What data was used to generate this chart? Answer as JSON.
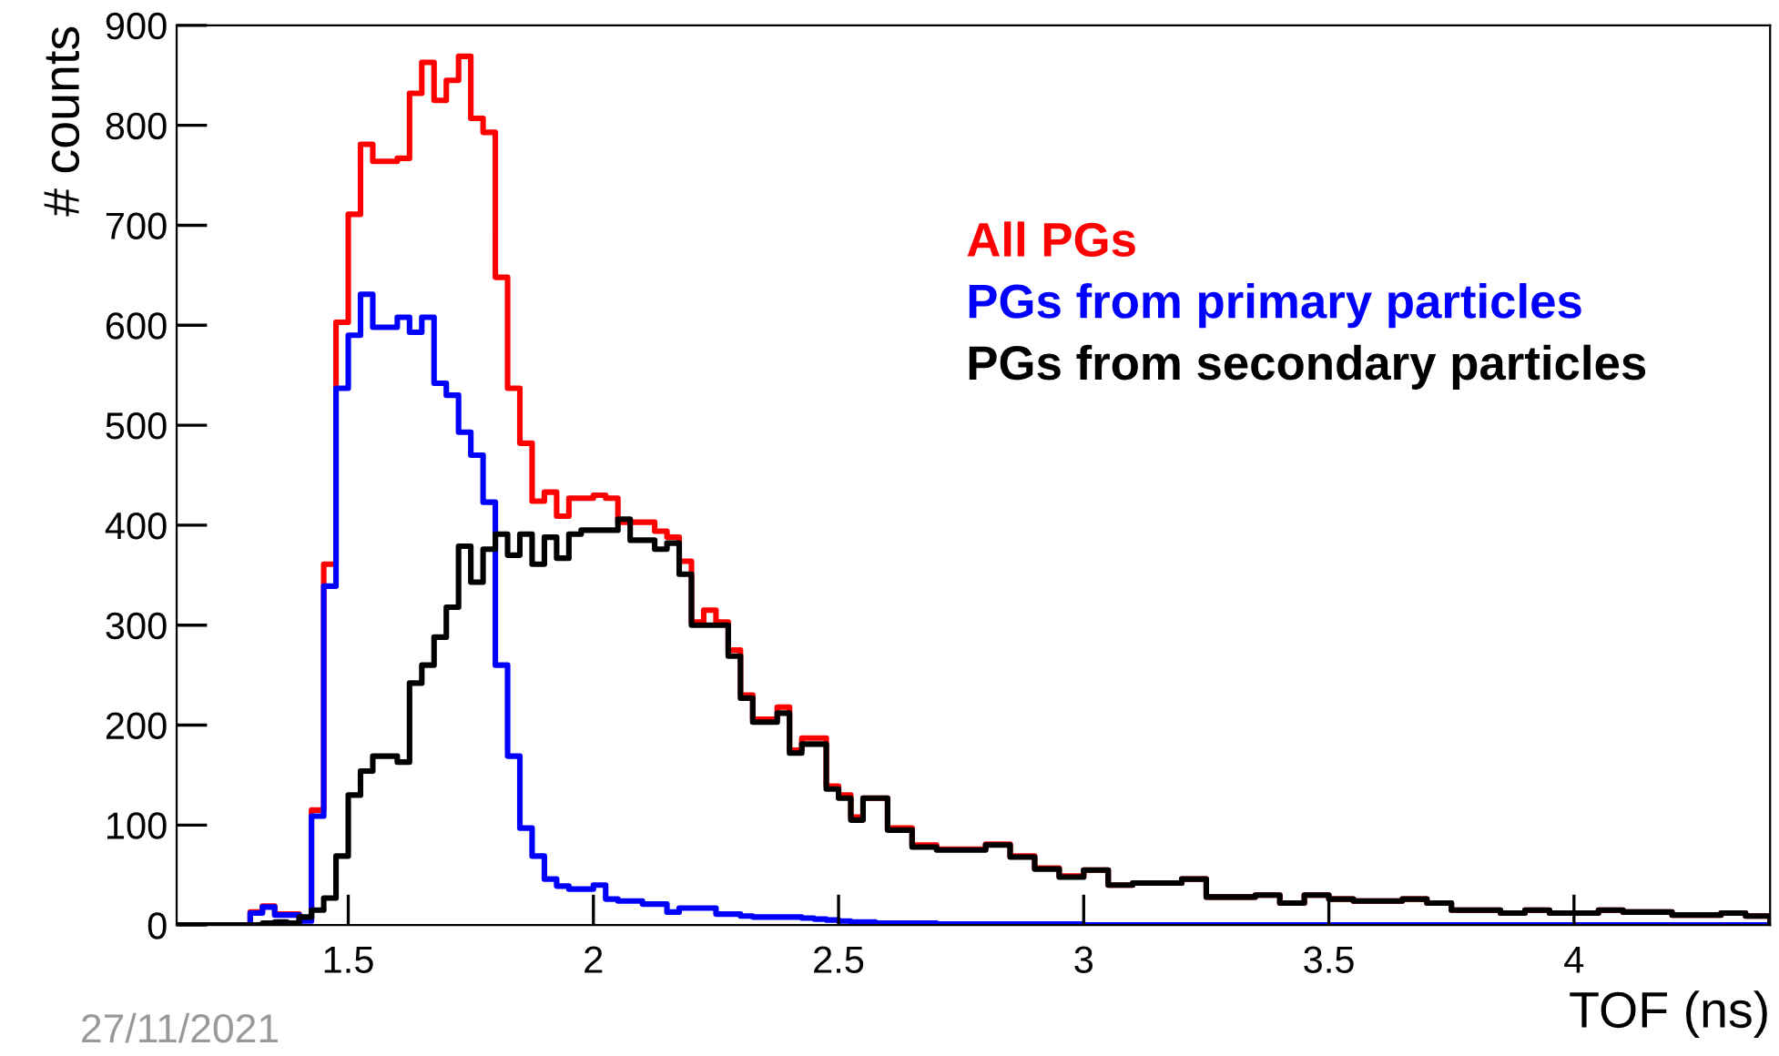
{
  "chart_data": {
    "type": "histogram",
    "xlabel": "TOF (ns)",
    "ylabel": "# counts",
    "annotations": [
      "27/11/2021"
    ],
    "bins": [
      1.15,
      1.175,
      1.2,
      1.225,
      1.25,
      1.275,
      1.3,
      1.325,
      1.35,
      1.375,
      1.4,
      1.425,
      1.45,
      1.475,
      1.5,
      1.525,
      1.55,
      1.575,
      1.6,
      1.625,
      1.65,
      1.675,
      1.7,
      1.725,
      1.75,
      1.775,
      1.8,
      1.825,
      1.85,
      1.875,
      1.9,
      1.925,
      1.95,
      1.975,
      2.0,
      2.025,
      2.05,
      2.075,
      2.1,
      2.125,
      2.15,
      2.175,
      2.2,
      2.225,
      2.25,
      2.275,
      2.3,
      2.325,
      2.35,
      2.375,
      2.4,
      2.425,
      2.45,
      2.475,
      2.5,
      2.525,
      2.55,
      2.575,
      2.6,
      2.65,
      2.7,
      2.75,
      2.8,
      2.85,
      2.9,
      2.95,
      3.0,
      3.05,
      3.1,
      3.15,
      3.2,
      3.25,
      3.3,
      3.35,
      3.4,
      3.45,
      3.5,
      3.55,
      3.6,
      3.65,
      3.7,
      3.75,
      3.8,
      3.85,
      3.9,
      3.95,
      4.0,
      4.05,
      4.1,
      4.15,
      4.2,
      4.25,
      4.3,
      4.35,
      4.4
    ],
    "series": [
      {
        "name": "All PGs",
        "color": "#ff0000",
        "values": [
          0,
          0,
          0,
          0,
          0,
          0,
          13,
          19,
          11,
          11,
          5,
          115,
          361,
          603,
          711,
          781,
          764,
          764,
          767,
          832,
          863,
          825,
          845,
          869,
          807,
          793,
          648,
          537,
          482,
          424,
          433,
          409,
          427,
          427,
          430,
          427,
          403,
          403,
          403,
          394,
          388,
          364,
          303,
          315,
          303,
          275,
          230,
          206,
          206,
          218,
          175,
          187,
          187,
          139,
          130,
          108,
          127,
          127,
          97,
          80,
          76,
          76,
          81,
          69,
          57,
          49,
          55,
          40,
          42,
          42,
          46,
          28,
          28,
          30,
          22,
          30,
          26,
          24,
          24,
          26,
          22,
          15,
          15,
          12,
          15,
          12,
          12,
          15,
          13,
          13,
          10,
          10,
          12,
          9
        ]
      },
      {
        "name": "PGs from primary particles",
        "color": "#0000ff",
        "values": [
          0,
          0,
          0,
          0,
          0,
          0,
          12,
          18,
          10,
          10,
          4,
          109,
          339,
          537,
          590,
          631,
          598,
          598,
          608,
          593,
          608,
          542,
          530,
          493,
          470,
          423,
          260,
          169,
          97,
          69,
          46,
          39,
          36,
          36,
          40,
          26,
          24,
          24,
          21,
          21,
          13,
          17,
          17,
          17,
          11,
          11,
          9,
          8,
          8,
          8,
          8,
          7,
          6,
          5,
          4,
          3,
          3,
          2,
          2,
          2,
          1,
          1,
          1,
          1,
          1,
          1,
          0,
          0,
          0,
          0,
          0,
          0,
          0,
          0,
          0,
          0,
          0,
          0,
          0,
          0,
          0,
          0,
          0,
          0,
          0,
          0,
          0,
          0,
          0,
          0,
          0,
          0,
          0,
          0
        ]
      },
      {
        "name": "PGs from secondary particles",
        "color": "#000000",
        "values": [
          0,
          0,
          0,
          0,
          0,
          0,
          0,
          2,
          3,
          2,
          8,
          15,
          27,
          69,
          130,
          154,
          169,
          169,
          163,
          242,
          260,
          288,
          318,
          379,
          343,
          376,
          391,
          370,
          391,
          361,
          388,
          367,
          391,
          395,
          395,
          395,
          406,
          385,
          385,
          376,
          382,
          351,
          300,
          300,
          300,
          269,
          227,
          203,
          203,
          212,
          172,
          181,
          181,
          136,
          127,
          105,
          127,
          127,
          95,
          78,
          75,
          75,
          80,
          68,
          56,
          48,
          55,
          40,
          42,
          42,
          46,
          28,
          28,
          30,
          22,
          30,
          26,
          24,
          24,
          26,
          22,
          15,
          15,
          12,
          15,
          12,
          12,
          15,
          13,
          13,
          10,
          10,
          12,
          9
        ]
      }
    ],
    "xlim": [
      1.15,
      4.4
    ],
    "xticks": [
      1.5,
      2,
      2.5,
      3,
      3.5,
      4
    ],
    "ylim": [
      0,
      900
    ],
    "yticks": [
      0,
      100,
      200,
      300,
      400,
      500,
      600,
      700,
      800,
      900
    ],
    "grid": false,
    "legend": "top right"
  }
}
